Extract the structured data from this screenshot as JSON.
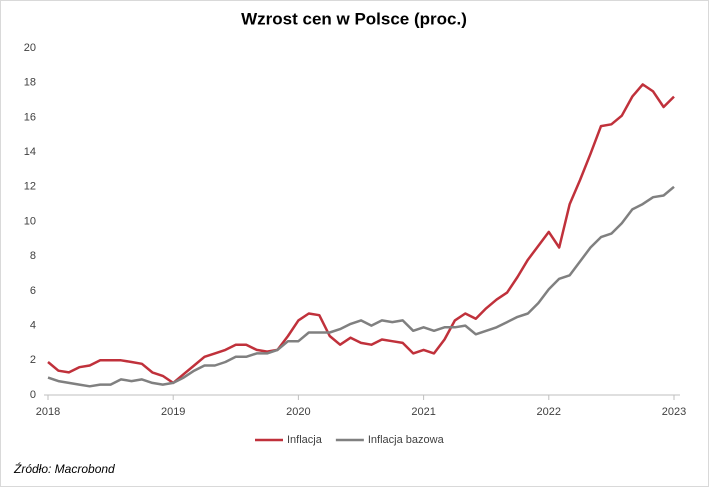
{
  "chart_data": {
    "type": "line",
    "title": "Wzrost cen w Polsce (proc.)",
    "categories": [
      "2018",
      null,
      null,
      null,
      null,
      null,
      null,
      null,
      null,
      null,
      null,
      null,
      "2019",
      null,
      null,
      null,
      null,
      null,
      null,
      null,
      null,
      null,
      null,
      null,
      "2020",
      null,
      null,
      null,
      null,
      null,
      null,
      null,
      null,
      null,
      null,
      null,
      "2021",
      null,
      null,
      null,
      null,
      null,
      null,
      null,
      null,
      null,
      null,
      null,
      "2022",
      null,
      null,
      null,
      null,
      null,
      null,
      null,
      null,
      null,
      null,
      null,
      "2023"
    ],
    "series": [
      {
        "name": "Inflacja",
        "color": "#c0313b",
        "values": [
          1.9,
          1.4,
          1.3,
          1.6,
          1.7,
          2.0,
          2.0,
          2.0,
          1.9,
          1.8,
          1.3,
          1.1,
          0.7,
          1.2,
          1.7,
          2.2,
          2.4,
          2.6,
          2.9,
          2.9,
          2.6,
          2.5,
          2.6,
          3.4,
          4.3,
          4.7,
          4.6,
          3.4,
          2.9,
          3.3,
          3.0,
          2.9,
          3.2,
          3.1,
          3.0,
          2.4,
          2.6,
          2.4,
          3.2,
          4.3,
          4.7,
          4.4,
          5.0,
          5.5,
          5.9,
          6.8,
          7.8,
          8.6,
          9.4,
          8.5,
          11.0,
          12.4,
          13.9,
          15.5,
          15.6,
          16.1,
          17.2,
          17.9,
          17.5,
          16.6,
          17.2
        ]
      },
      {
        "name": "Inflacja bazowa",
        "color": "#808080",
        "values": [
          1.0,
          0.8,
          0.7,
          0.6,
          0.5,
          0.6,
          0.6,
          0.9,
          0.8,
          0.9,
          0.7,
          0.6,
          0.7,
          1.0,
          1.4,
          1.7,
          1.7,
          1.9,
          2.2,
          2.2,
          2.4,
          2.4,
          2.6,
          3.1,
          3.1,
          3.6,
          3.6,
          3.6,
          3.8,
          4.1,
          4.3,
          4.0,
          4.3,
          4.2,
          4.3,
          3.7,
          3.9,
          3.7,
          3.9,
          3.9,
          4.0,
          3.5,
          3.7,
          3.9,
          4.2,
          4.5,
          4.7,
          5.3,
          6.1,
          6.7,
          6.9,
          7.7,
          8.5,
          9.1,
          9.3,
          9.9,
          10.7,
          11.0,
          11.4,
          11.5,
          12.0
        ]
      }
    ],
    "ylim": [
      0,
      20
    ],
    "yticks": [
      0,
      2,
      4,
      6,
      8,
      10,
      12,
      14,
      16,
      18,
      20
    ],
    "grid": false,
    "legend": "bottom",
    "source": "Źródło: Macrobond"
  }
}
